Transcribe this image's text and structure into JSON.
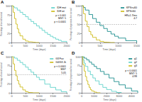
{
  "chart_data": [
    {
      "type": "step",
      "title": "A",
      "xlabel": "Time (days)",
      "ylabel": "Percentage of overall survival",
      "xlim": [
        0,
        2000
      ],
      "ylim": [
        0,
        100
      ],
      "xticks": [
        0,
        500,
        1000,
        1500,
        2000
      ],
      "yticks": [
        0,
        25,
        50,
        75,
        100
      ],
      "grid": false,
      "legend": "upper right",
      "annotations": [
        "p < 0.001",
        "MST: 5",
        "p < 0.0001"
      ],
      "series": [
        {
          "name": "IDH mut",
          "color": "#4ecdc4",
          "x": [
            0,
            50,
            100,
            200,
            300,
            400,
            500,
            600,
            700,
            800,
            900,
            1000,
            1100,
            1200,
            1300,
            1400,
            1500,
            1600,
            1700,
            1800,
            2000
          ],
          "values": [
            100,
            97,
            94,
            88,
            82,
            76,
            70,
            63,
            57,
            51,
            45,
            39,
            33,
            27,
            22,
            17,
            13,
            9,
            6,
            3,
            0
          ]
        },
        {
          "name": "IDH wt",
          "color": "#c8b400",
          "x": [
            0,
            50,
            100,
            150,
            200,
            250,
            300,
            400,
            500,
            600,
            700,
            800,
            900,
            1000
          ],
          "values": [
            100,
            82,
            65,
            50,
            37,
            26,
            18,
            9,
            4,
            2,
            1,
            0,
            0,
            0
          ]
        }
      ]
    },
    {
      "type": "step",
      "title": "B",
      "xlabel": "Time (days)",
      "ylabel": "Percentage of progression-free survival",
      "xlim": [
        0,
        1500
      ],
      "ylim": [
        0,
        100
      ],
      "xticks": [
        0,
        500,
        1000,
        1500
      ],
      "yticks": [
        0,
        25,
        50,
        75,
        100
      ],
      "grid": false,
      "legend": "upper right",
      "hline": 50,
      "annotations": [
        "HR=1.7/ms",
        "4.7"
      ],
      "series": [
        {
          "name": "KPS>=60",
          "color": "#008080",
          "x": [
            0,
            50,
            100,
            200,
            300,
            400,
            500,
            600,
            700,
            800,
            900,
            1000,
            1200,
            1500
          ],
          "values": [
            100,
            95,
            88,
            76,
            65,
            55,
            46,
            38,
            30,
            23,
            17,
            12,
            5,
            0
          ]
        },
        {
          "name": "KPS<60",
          "color": "#c8b400",
          "x": [
            0,
            50,
            100,
            150,
            200,
            250,
            300,
            400,
            500,
            600,
            700,
            800,
            900
          ],
          "values": [
            100,
            78,
            58,
            43,
            30,
            21,
            14,
            7,
            3,
            1,
            0,
            0,
            0
          ]
        }
      ]
    },
    {
      "type": "step",
      "title": "C",
      "xlabel": "Time (days)",
      "ylabel": "Percentage of overall survival",
      "xlim": [
        0,
        2000
      ],
      "ylim": [
        0,
        100
      ],
      "xticks": [
        0,
        500,
        1000,
        1500,
        2000
      ],
      "yticks": [
        0,
        25,
        50,
        75,
        100
      ],
      "grid": false,
      "legend": "upper right",
      "hline": 50,
      "annotations": [
        "p < 0.0001",
        "MST",
        "5.05"
      ],
      "series": [
        {
          "name": "G3 Fav",
          "color": "#4ecdc4",
          "x": [
            0,
            100,
            200,
            300,
            400,
            500,
            600,
            700,
            800,
            900,
            1000,
            1200,
            1400,
            1600,
            1800,
            2000
          ],
          "values": [
            100,
            96,
            90,
            84,
            78,
            71,
            64,
            57,
            50,
            43,
            36,
            24,
            15,
            8,
            3,
            0
          ]
        },
        {
          "name": "G4/G3 Jk",
          "color": "#c8b400",
          "x": [
            0,
            50,
            100,
            150,
            200,
            250,
            300,
            400,
            500,
            600,
            700,
            800,
            1000
          ],
          "values": [
            100,
            80,
            62,
            47,
            34,
            24,
            16,
            8,
            3,
            1,
            0,
            0,
            0
          ]
        }
      ]
    },
    {
      "type": "step",
      "title": "D",
      "xlabel": "Time (days)",
      "ylabel": "Percentage of progression-free survival",
      "xlim": [
        0,
        4500
      ],
      "ylim": [
        0,
        100
      ],
      "xticks": [
        0,
        1000,
        2000,
        3000,
        4000
      ],
      "yticks": [
        0,
        25,
        50,
        75,
        100
      ],
      "grid": false,
      "legend": "upper right",
      "annotations": [
        "p < 0.0001",
        "MST: 5",
        "4.98"
      ],
      "series": [
        {
          "name": "g1",
          "color": "#008080",
          "x": [
            0,
            200,
            400,
            600,
            800,
            1000,
            1200,
            1500,
            1800,
            2200,
            2600,
            3000,
            3500,
            4000,
            4500
          ],
          "values": [
            100,
            96,
            91,
            85,
            79,
            73,
            67,
            59,
            51,
            41,
            31,
            22,
            13,
            5,
            0
          ]
        },
        {
          "name": "g2",
          "color": "#4ecdc4",
          "x": [
            0,
            100,
            200,
            300,
            500,
            700,
            900,
            1100,
            1400,
            1700,
            2000,
            2400,
            2800,
            3200
          ],
          "values": [
            100,
            91,
            82,
            73,
            60,
            50,
            41,
            33,
            23,
            15,
            9,
            4,
            1,
            0
          ]
        },
        {
          "name": "g3",
          "color": "#c8b400",
          "x": [
            0,
            100,
            200,
            300,
            400,
            500,
            600,
            700,
            800,
            1000,
            1200,
            1500
          ],
          "values": [
            100,
            78,
            60,
            45,
            33,
            23,
            15,
            9,
            5,
            2,
            0,
            0
          ]
        }
      ]
    }
  ]
}
